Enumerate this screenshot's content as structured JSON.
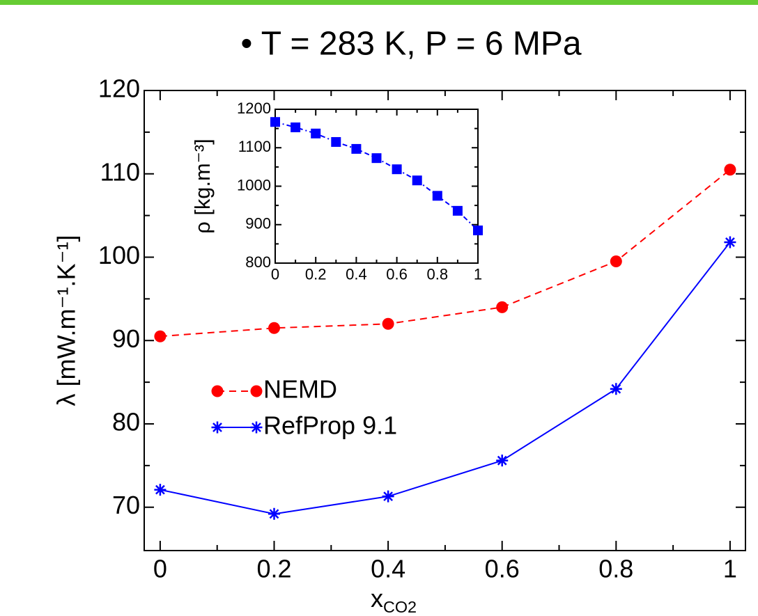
{
  "chart_data": [
    {
      "type": "line",
      "title": "• T = 283 K, P = 6 MPa",
      "xlabel": "x",
      "xlabel_sub": "CO2",
      "ylabel": "λ [mW.m⁻¹.K⁻¹]",
      "x": [
        0,
        0.2,
        0.4,
        0.6,
        0.8,
        1
      ],
      "series": [
        {
          "name": "NEMD",
          "color": "#ff0000",
          "marker": "circle",
          "linestyle": "dashed",
          "values": [
            90.5,
            91.5,
            92.0,
            94.0,
            99.5,
            110.5
          ]
        },
        {
          "name": "RefProp 9.1",
          "color": "#0000ff",
          "marker": "star",
          "linestyle": "solid",
          "values": [
            72.1,
            69.2,
            71.3,
            75.6,
            84.2,
            101.8
          ]
        }
      ],
      "xlim": [
        -0.028,
        1.027
      ],
      "ylim": [
        64.8,
        120
      ],
      "xticks": [
        0,
        0.2,
        0.4,
        0.6,
        0.8,
        1
      ],
      "yticks": [
        70,
        80,
        90,
        100,
        110,
        120
      ],
      "x_minor_ticks": [
        0.1,
        0.3,
        0.5,
        0.7,
        0.9
      ],
      "y_minor_ticks": [
        75,
        85,
        95,
        105,
        115
      ],
      "legend": "center left"
    },
    {
      "type": "line",
      "ylabel": "ρ [kg.m⁻³]",
      "x": [
        0,
        0.1,
        0.2,
        0.3,
        0.4,
        0.5,
        0.6,
        0.7,
        0.8,
        0.9,
        1
      ],
      "series": [
        {
          "color": "#0000ff",
          "marker": "square",
          "linestyle": "dashdot",
          "values": [
            1167,
            1153,
            1137,
            1115,
            1097,
            1073,
            1044,
            1015,
            975,
            936,
            885
          ]
        }
      ],
      "xlim": [
        0,
        1
      ],
      "ylim": [
        800,
        1200
      ],
      "xticks": [
        0,
        0.2,
        0.4,
        0.6,
        0.8,
        1
      ],
      "yticks": [
        800,
        900,
        1000,
        1100,
        1200
      ],
      "x_minor_ticks": [
        0.1,
        0.3,
        0.5,
        0.7,
        0.9
      ],
      "y_minor_ticks": [
        850,
        950,
        1050,
        1150
      ]
    }
  ]
}
